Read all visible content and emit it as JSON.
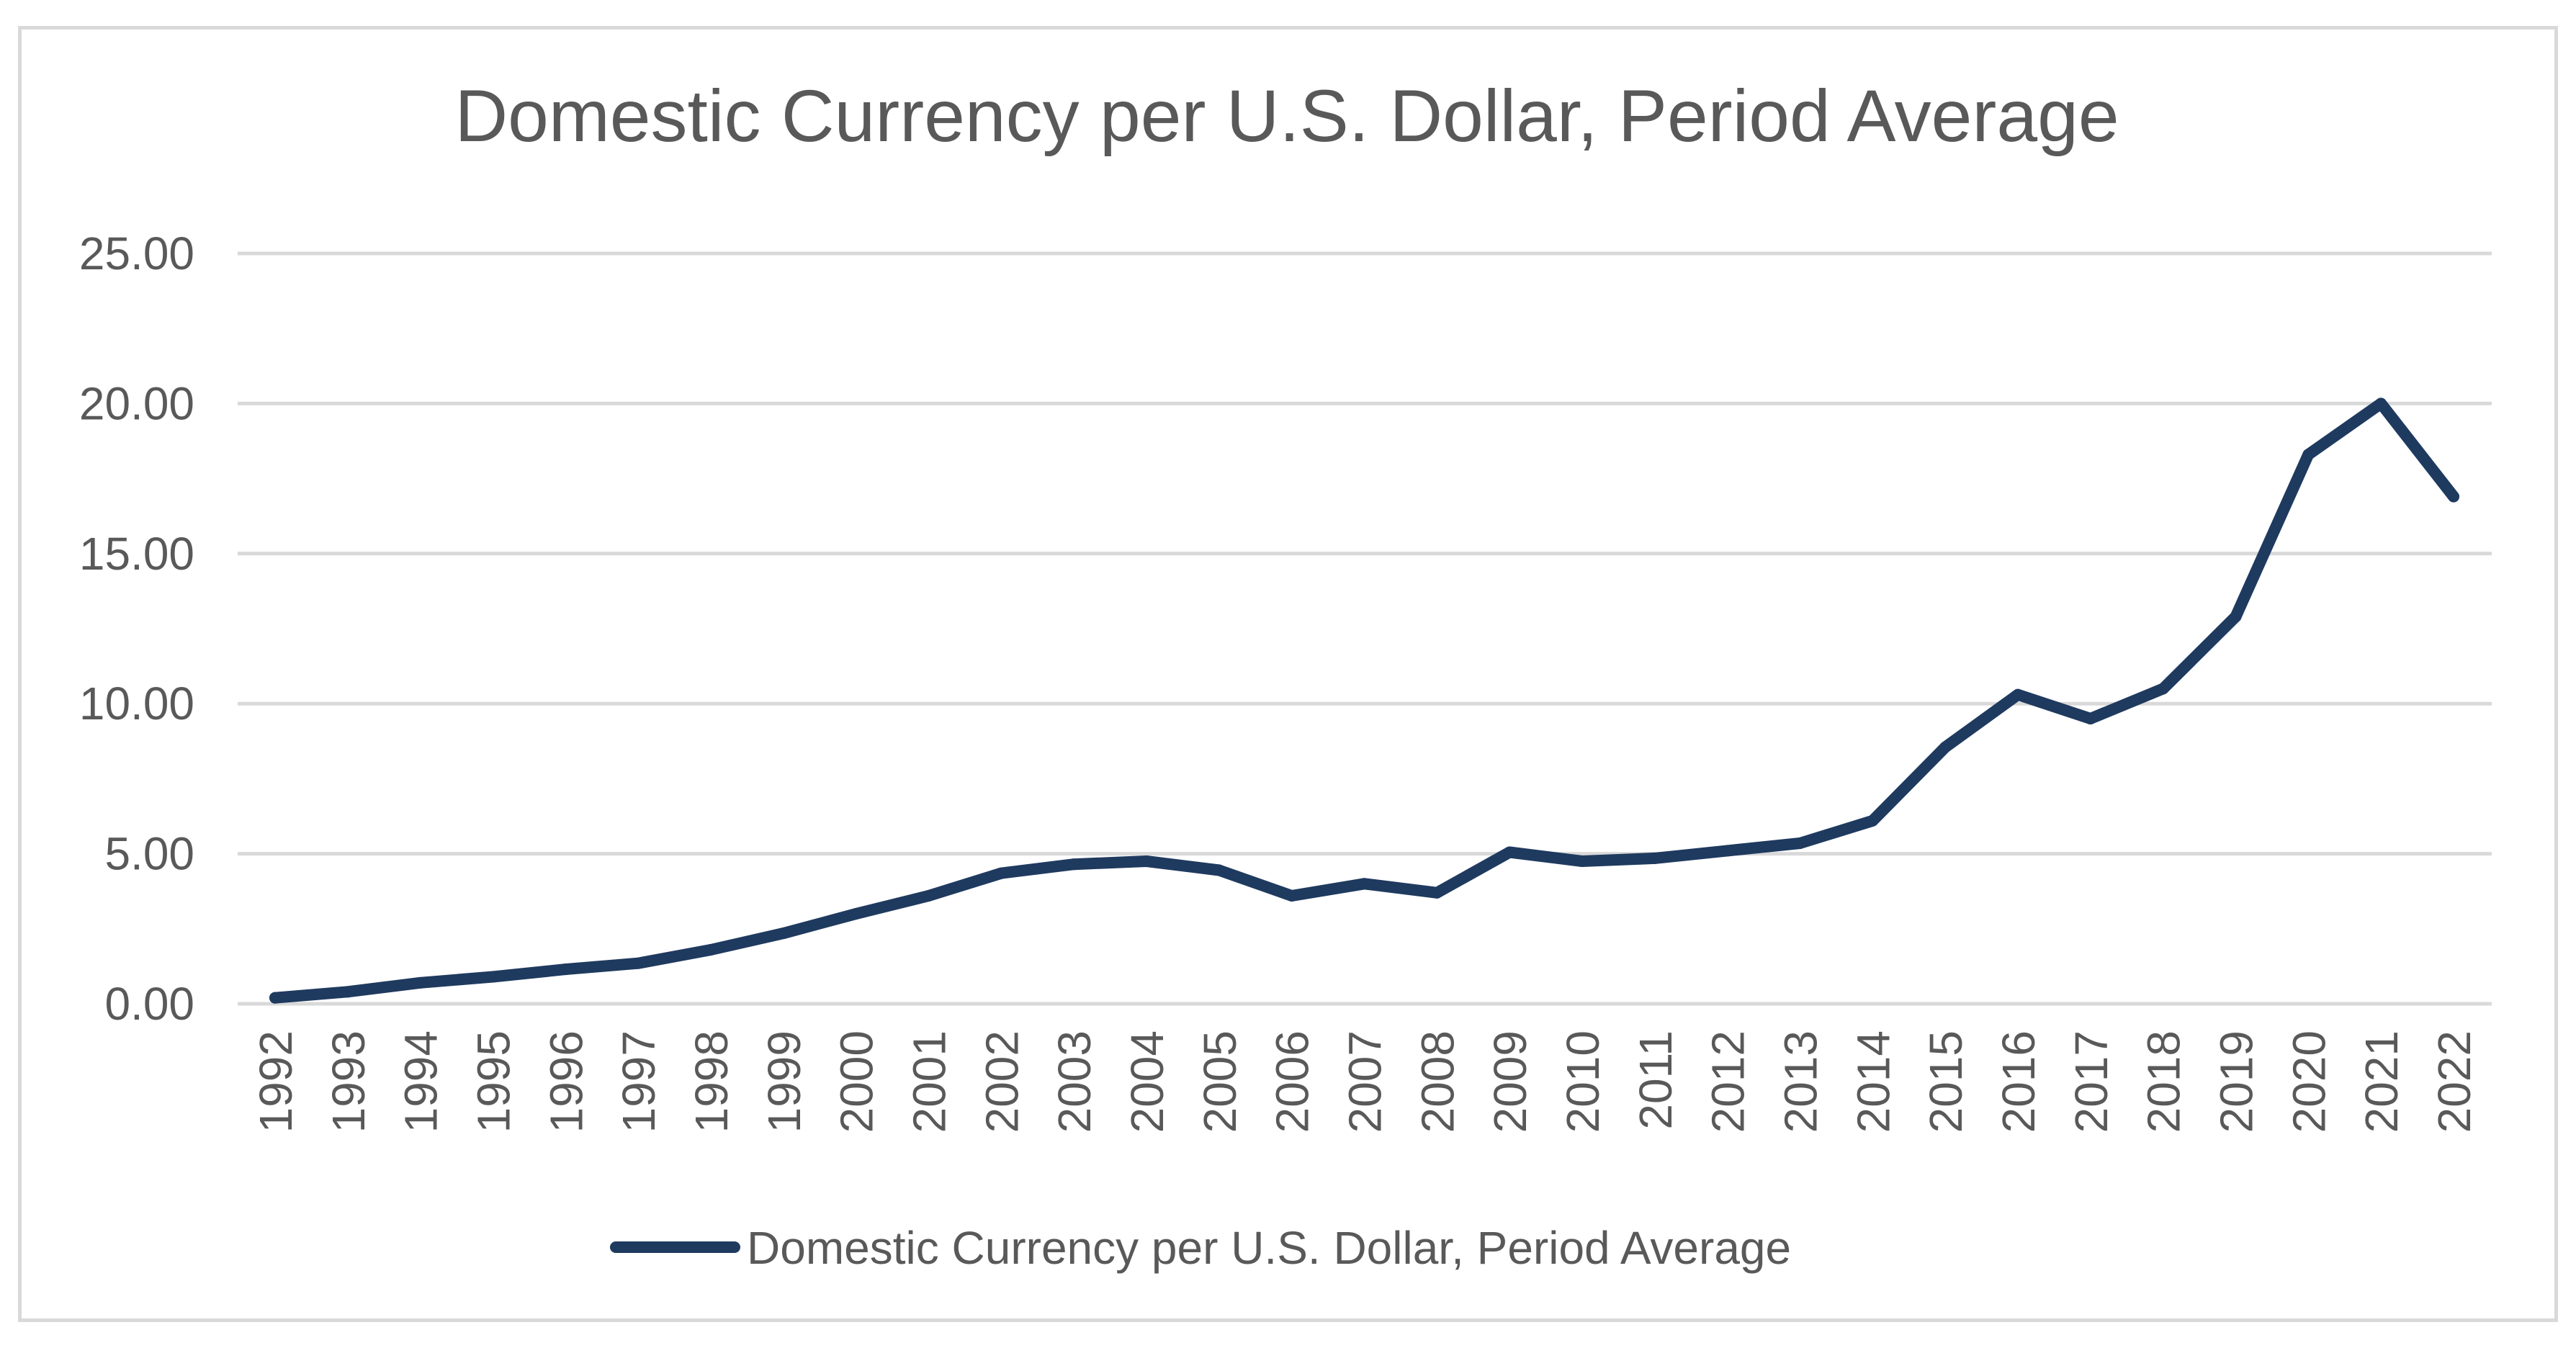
{
  "chart_data": {
    "type": "line",
    "title": "Domestic Currency per U.S. Dollar, Period Average",
    "xlabel": "",
    "ylabel": "",
    "ylim": [
      0,
      25
    ],
    "yticks": [
      0,
      5,
      10,
      15,
      20,
      25
    ],
    "ytick_labels": [
      "0.00",
      "5.00",
      "10.00",
      "15.00",
      "20.00",
      "25.00"
    ],
    "categories": [
      "1992",
      "1993",
      "1994",
      "1995",
      "1996",
      "1997",
      "1998",
      "1999",
      "2000",
      "2001",
      "2002",
      "2003",
      "2004",
      "2005",
      "2006",
      "2007",
      "2008",
      "2009",
      "2010",
      "2011",
      "2012",
      "2013",
      "2014",
      "2015",
      "2016",
      "2017",
      "2018",
      "2019",
      "2020",
      "2021",
      "2022"
    ],
    "grid": true,
    "legend_position": "bottom",
    "series": [
      {
        "name": "Domestic Currency per U.S. Dollar, Period Average",
        "color": "#1f3a5f",
        "values": [
          0.2,
          0.4,
          0.7,
          0.9,
          1.15,
          1.35,
          1.8,
          2.35,
          3.0,
          3.6,
          4.35,
          4.65,
          4.75,
          4.45,
          3.6,
          4.0,
          3.7,
          5.05,
          4.75,
          4.85,
          5.1,
          5.35,
          6.1,
          8.55,
          10.3,
          9.5,
          10.5,
          12.9,
          18.3,
          20.0,
          16.9
        ]
      }
    ]
  }
}
